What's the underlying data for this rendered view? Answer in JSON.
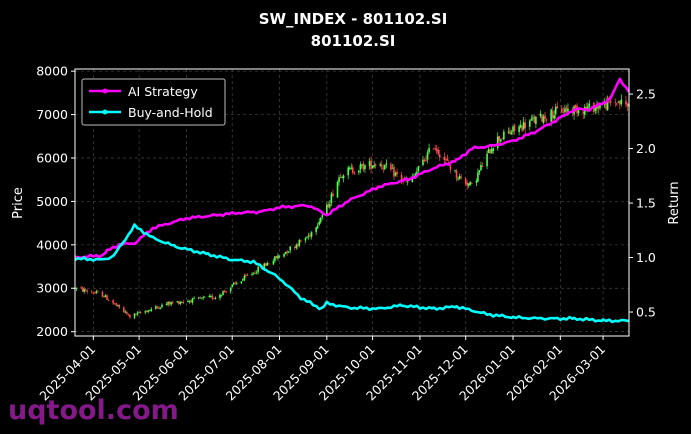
{
  "chart_data": {
    "type": "candlestick",
    "title": "SW_INDEX - 801102.SI",
    "subtitle": "801102.SI",
    "ylabel_left": "Price",
    "ylabel_right": "Return",
    "xlabel": "",
    "x_tick_labels": [
      "2025-04-01",
      "2025-05-01",
      "2025-06-01",
      "2025-07-01",
      "2025-08-01",
      "2025-09-01",
      "2025-10-01",
      "2025-11-01",
      "2025-12-01",
      "2026-01-01",
      "2026-02-01",
      "2026-03-01"
    ],
    "x_range": [
      "2025-03-20",
      "2026-03-18"
    ],
    "ylim_left": [
      1900,
      8050
    ],
    "y_ticks_left": [
      2000,
      3000,
      4000,
      5000,
      6000,
      7000,
      8000
    ],
    "ylim_right": [
      0.28,
      2.73
    ],
    "y_ticks_right": [
      0.5,
      1.0,
      1.5,
      2.0,
      2.5
    ],
    "grid": true,
    "legend_position": "top-left",
    "colors": {
      "up": "#4cff4c",
      "down": "#ff4c4c",
      "ai": "#ff00ff",
      "bh": "#00ffff",
      "grid": "#444444"
    },
    "price_path": [
      [
        "2025-03-20",
        3000
      ],
      [
        "2025-04-07",
        2850
      ],
      [
        "2025-04-25",
        2350
      ],
      [
        "2025-05-20",
        2650
      ],
      [
        "2025-06-20",
        2800
      ],
      [
        "2025-07-12",
        3300
      ],
      [
        "2025-08-01",
        3750
      ],
      [
        "2025-08-20",
        4200
      ],
      [
        "2025-09-01",
        4850
      ],
      [
        "2025-09-10",
        5650
      ],
      [
        "2025-09-25",
        5800
      ],
      [
        "2025-10-05",
        5900
      ],
      [
        "2025-10-25",
        5400
      ],
      [
        "2025-11-10",
        6300
      ],
      [
        "2025-11-25",
        5600
      ],
      [
        "2025-12-05",
        5350
      ],
      [
        "2025-12-20",
        6400
      ],
      [
        "2026-01-10",
        6800
      ],
      [
        "2026-02-01",
        7100
      ],
      [
        "2026-02-20",
        7150
      ],
      [
        "2026-03-10",
        7300
      ],
      [
        "2026-03-18",
        7200
      ]
    ],
    "series": [
      {
        "name": "AI Strategy",
        "values": [
          [
            "2025-03-20",
            1.0
          ],
          [
            "2025-04-07",
            1.02
          ],
          [
            "2025-04-10",
            1.06
          ],
          [
            "2025-04-18",
            1.12
          ],
          [
            "2025-04-28",
            1.13
          ],
          [
            "2025-05-10",
            1.27
          ],
          [
            "2025-06-01",
            1.36
          ],
          [
            "2025-07-05",
            1.41
          ],
          [
            "2025-07-20",
            1.42
          ],
          [
            "2025-08-01",
            1.46
          ],
          [
            "2025-08-20",
            1.48
          ],
          [
            "2025-09-01",
            1.39
          ],
          [
            "2025-09-15",
            1.52
          ],
          [
            "2025-10-05",
            1.65
          ],
          [
            "2025-10-25",
            1.72
          ],
          [
            "2025-11-10",
            1.82
          ],
          [
            "2025-11-25",
            1.89
          ],
          [
            "2025-12-05",
            2.0
          ],
          [
            "2025-12-20",
            2.03
          ],
          [
            "2026-01-01",
            2.07
          ],
          [
            "2026-01-15",
            2.15
          ],
          [
            "2026-02-01",
            2.28
          ],
          [
            "2026-02-10",
            2.36
          ],
          [
            "2026-02-20",
            2.36
          ],
          [
            "2026-03-01",
            2.42
          ],
          [
            "2026-03-06",
            2.46
          ],
          [
            "2026-03-12",
            2.64
          ],
          [
            "2026-03-18",
            2.52
          ]
        ]
      },
      {
        "name": "Buy-and-Hold",
        "values": [
          [
            "2025-03-20",
            0.99
          ],
          [
            "2025-04-07",
            0.98
          ],
          [
            "2025-04-14",
            1.01
          ],
          [
            "2025-04-28",
            1.29
          ],
          [
            "2025-05-10",
            1.18
          ],
          [
            "2025-05-25",
            1.1
          ],
          [
            "2025-06-15",
            1.03
          ],
          [
            "2025-07-01",
            0.98
          ],
          [
            "2025-07-15",
            0.96
          ],
          [
            "2025-08-01",
            0.81
          ],
          [
            "2025-08-15",
            0.63
          ],
          [
            "2025-08-28",
            0.53
          ],
          [
            "2025-09-01",
            0.58
          ],
          [
            "2025-09-15",
            0.54
          ],
          [
            "2025-10-05",
            0.53
          ],
          [
            "2025-10-20",
            0.56
          ],
          [
            "2025-11-10",
            0.53
          ],
          [
            "2025-11-25",
            0.55
          ],
          [
            "2025-12-15",
            0.48
          ],
          [
            "2026-01-01",
            0.45
          ],
          [
            "2026-01-20",
            0.44
          ],
          [
            "2026-02-10",
            0.44
          ],
          [
            "2026-03-01",
            0.42
          ],
          [
            "2026-03-18",
            0.42
          ]
        ]
      }
    ]
  },
  "watermark": "uqtool.com"
}
